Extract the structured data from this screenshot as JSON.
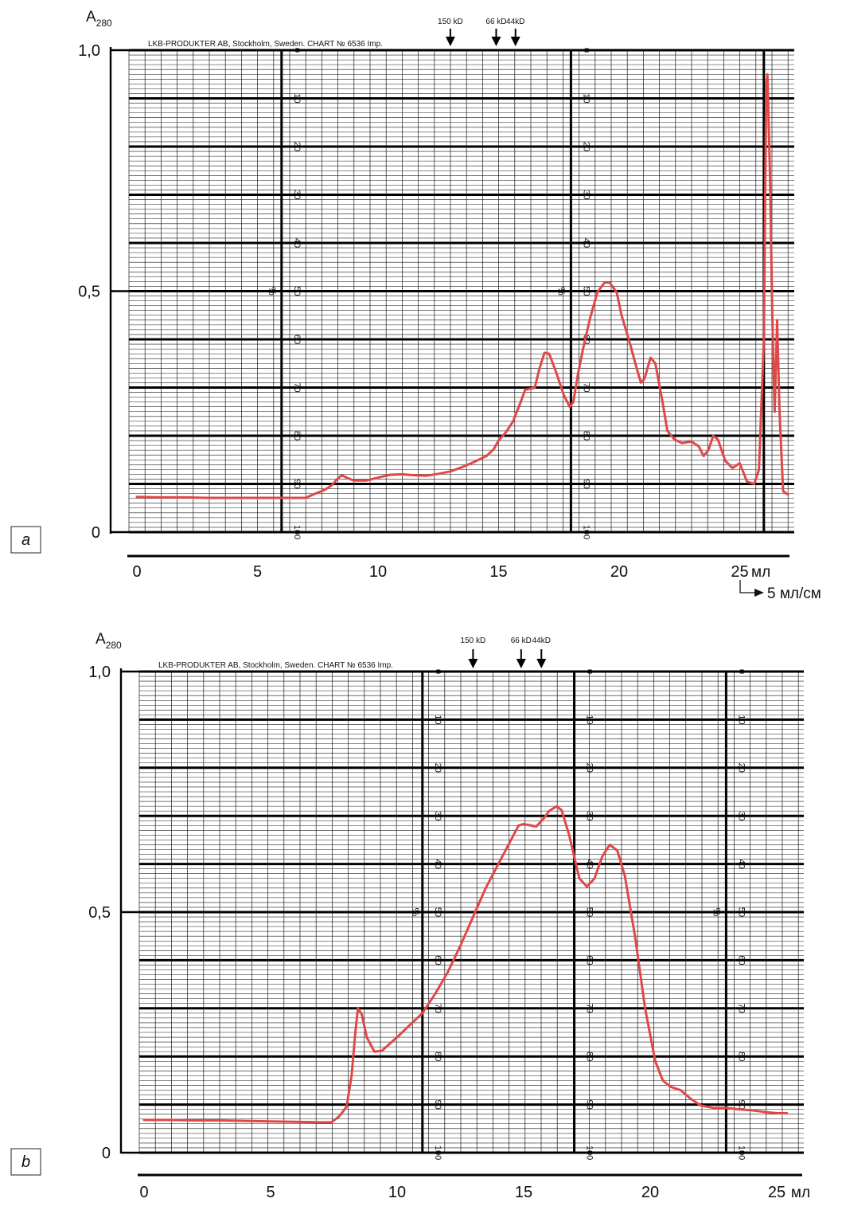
{
  "chart_data": [
    {
      "type": "line",
      "panel_label": "a",
      "ylabel_base": "A",
      "ylabel_sub": "280",
      "y_ticks": [
        {
          "value": 0,
          "label": "0"
        },
        {
          "value": 0.5,
          "label": "0,5"
        },
        {
          "value": 1.0,
          "label": "1,0"
        }
      ],
      "ylim": [
        0,
        1.0
      ],
      "xlim": [
        0,
        27
      ],
      "x_ticks": [
        {
          "value": 0,
          "label": "0"
        },
        {
          "value": 5,
          "label": "5"
        },
        {
          "value": 10,
          "label": "10"
        },
        {
          "value": 15,
          "label": "15"
        },
        {
          "value": 20,
          "label": "20"
        },
        {
          "value": 25,
          "label": "25"
        }
      ],
      "x_unit": "мл",
      "scale_note": "5 мл/см",
      "chart_header": "LKB-PRODUKTER AB, Stockholm, Sweden. CHART № 6536 Imp.",
      "percent_sign": "%",
      "percent_labels": [
        "0",
        "10",
        "20",
        "30",
        "40",
        "50",
        "60",
        "70",
        "80",
        "90",
        "100"
      ],
      "major_x_lines": [
        6,
        18,
        26
      ],
      "markers": [
        {
          "label": "150 kD",
          "x": 13
        },
        {
          "label": "66 kD",
          "x": 14.9
        },
        {
          "label": "44kD",
          "x": 15.7
        }
      ],
      "grid": true,
      "series": [
        {
          "color": "#e04848",
          "points": [
            [
              0,
              0.073
            ],
            [
              1,
              0.072
            ],
            [
              2,
              0.072
            ],
            [
              3,
              0.071
            ],
            [
              4,
              0.071
            ],
            [
              5,
              0.071
            ],
            [
              6,
              0.071
            ],
            [
              7,
              0.071
            ],
            [
              7.4,
              0.08
            ],
            [
              7.8,
              0.088
            ],
            [
              8.1,
              0.098
            ],
            [
              8.3,
              0.11
            ],
            [
              8.5,
              0.118
            ],
            [
              8.7,
              0.113
            ],
            [
              9,
              0.107
            ],
            [
              9.5,
              0.107
            ],
            [
              10,
              0.113
            ],
            [
              10.5,
              0.119
            ],
            [
              11,
              0.12
            ],
            [
              11.5,
              0.118
            ],
            [
              12,
              0.117
            ],
            [
              12.5,
              0.121
            ],
            [
              13,
              0.126
            ],
            [
              13.5,
              0.135
            ],
            [
              14,
              0.146
            ],
            [
              14.5,
              0.158
            ],
            [
              14.8,
              0.172
            ],
            [
              15,
              0.19
            ],
            [
              15.3,
              0.207
            ],
            [
              15.6,
              0.23
            ],
            [
              15.9,
              0.268
            ],
            [
              16.1,
              0.295
            ],
            [
              16.5,
              0.3
            ],
            [
              16.7,
              0.34
            ],
            [
              16.9,
              0.372
            ],
            [
              17.1,
              0.37
            ],
            [
              17.4,
              0.33
            ],
            [
              17.7,
              0.285
            ],
            [
              17.95,
              0.26
            ],
            [
              18.1,
              0.27
            ],
            [
              18.3,
              0.33
            ],
            [
              18.5,
              0.38
            ],
            [
              18.8,
              0.445
            ],
            [
              19.1,
              0.498
            ],
            [
              19.4,
              0.518
            ],
            [
              19.6,
              0.518
            ],
            [
              19.9,
              0.497
            ],
            [
              20.1,
              0.45
            ],
            [
              20.4,
              0.4
            ],
            [
              20.7,
              0.345
            ],
            [
              20.9,
              0.31
            ],
            [
              21.05,
              0.318
            ],
            [
              21.3,
              0.362
            ],
            [
              21.5,
              0.35
            ],
            [
              21.8,
              0.27
            ],
            [
              22,
              0.21
            ],
            [
              22.3,
              0.192
            ],
            [
              22.6,
              0.185
            ],
            [
              23,
              0.188
            ],
            [
              23.3,
              0.178
            ],
            [
              23.5,
              0.158
            ],
            [
              23.7,
              0.17
            ],
            [
              23.9,
              0.2
            ],
            [
              24.1,
              0.192
            ],
            [
              24.4,
              0.148
            ],
            [
              24.7,
              0.133
            ],
            [
              25,
              0.143
            ],
            [
              25.3,
              0.105
            ],
            [
              25.6,
              0.1
            ],
            [
              25.8,
              0.13
            ],
            [
              26,
              0.4
            ],
            [
              26.1,
              0.93
            ],
            [
              26.15,
              0.95
            ],
            [
              26.25,
              0.75
            ],
            [
              26.35,
              0.45
            ],
            [
              26.45,
              0.25
            ],
            [
              26.55,
              0.44
            ],
            [
              26.65,
              0.25
            ],
            [
              26.8,
              0.085
            ],
            [
              27,
              0.078
            ]
          ]
        }
      ]
    },
    {
      "type": "line",
      "panel_label": "b",
      "ylabel_base": "A",
      "ylabel_sub": "280",
      "y_ticks": [
        {
          "value": 0,
          "label": "0"
        },
        {
          "value": 0.5,
          "label": "0,5"
        },
        {
          "value": 1.0,
          "label": "1,0"
        }
      ],
      "ylim": [
        0,
        1.0
      ],
      "xlim": [
        0,
        26
      ],
      "x_ticks": [
        {
          "value": 0,
          "label": "0"
        },
        {
          "value": 5,
          "label": "5"
        },
        {
          "value": 10,
          "label": "10"
        },
        {
          "value": 15,
          "label": "15"
        },
        {
          "value": 20,
          "label": "20"
        },
        {
          "value": 25,
          "label": "25"
        }
      ],
      "x_unit": "мл",
      "chart_header": "LKB-PRODUKTER AB, Stockholm, Sweden. CHART № 6536 Imp.",
      "percent_sign": "%",
      "percent_labels": [
        "0",
        "10",
        "20",
        "30",
        "40",
        "50",
        "60",
        "70",
        "80",
        "90",
        "100"
      ],
      "major_x_lines": [
        11,
        17,
        23
      ],
      "markers": [
        {
          "label": "150 kD",
          "x": 13
        },
        {
          "label": "66 kD",
          "x": 14.9
        },
        {
          "label": "44kD",
          "x": 15.7
        }
      ],
      "grid": true,
      "series": [
        {
          "color": "#e04848",
          "points": [
            [
              0,
              0.068
            ],
            [
              1,
              0.068
            ],
            [
              2,
              0.067
            ],
            [
              3,
              0.067
            ],
            [
              4,
              0.066
            ],
            [
              5,
              0.065
            ],
            [
              6,
              0.064
            ],
            [
              7,
              0.063
            ],
            [
              7.4,
              0.063
            ],
            [
              7.7,
              0.075
            ],
            [
              8,
              0.095
            ],
            [
              8.2,
              0.16
            ],
            [
              8.35,
              0.25
            ],
            [
              8.45,
              0.3
            ],
            [
              8.6,
              0.288
            ],
            [
              8.8,
              0.24
            ],
            [
              9.1,
              0.21
            ],
            [
              9.4,
              0.212
            ],
            [
              10,
              0.24
            ],
            [
              10.5,
              0.265
            ],
            [
              11,
              0.29
            ],
            [
              11.5,
              0.33
            ],
            [
              12,
              0.375
            ],
            [
              12.5,
              0.43
            ],
            [
              13,
              0.49
            ],
            [
              13.5,
              0.55
            ],
            [
              14,
              0.6
            ],
            [
              14.5,
              0.65
            ],
            [
              14.8,
              0.68
            ],
            [
              15,
              0.683
            ],
            [
              15.5,
              0.678
            ],
            [
              15.8,
              0.695
            ],
            [
              16,
              0.71
            ],
            [
              16.3,
              0.72
            ],
            [
              16.5,
              0.712
            ],
            [
              16.8,
              0.66
            ],
            [
              17.2,
              0.57
            ],
            [
              17.5,
              0.553
            ],
            [
              17.8,
              0.57
            ],
            [
              18.1,
              0.615
            ],
            [
              18.4,
              0.64
            ],
            [
              18.7,
              0.628
            ],
            [
              19,
              0.575
            ],
            [
              19.4,
              0.45
            ],
            [
              19.8,
              0.3
            ],
            [
              20.2,
              0.19
            ],
            [
              20.5,
              0.15
            ],
            [
              20.8,
              0.137
            ],
            [
              21.2,
              0.13
            ],
            [
              21.6,
              0.112
            ],
            [
              22,
              0.098
            ],
            [
              22.5,
              0.093
            ],
            [
              23,
              0.093
            ],
            [
              23.5,
              0.09
            ],
            [
              24,
              0.088
            ],
            [
              24.5,
              0.085
            ],
            [
              25,
              0.082
            ],
            [
              25.4,
              0.082
            ]
          ]
        }
      ]
    }
  ]
}
